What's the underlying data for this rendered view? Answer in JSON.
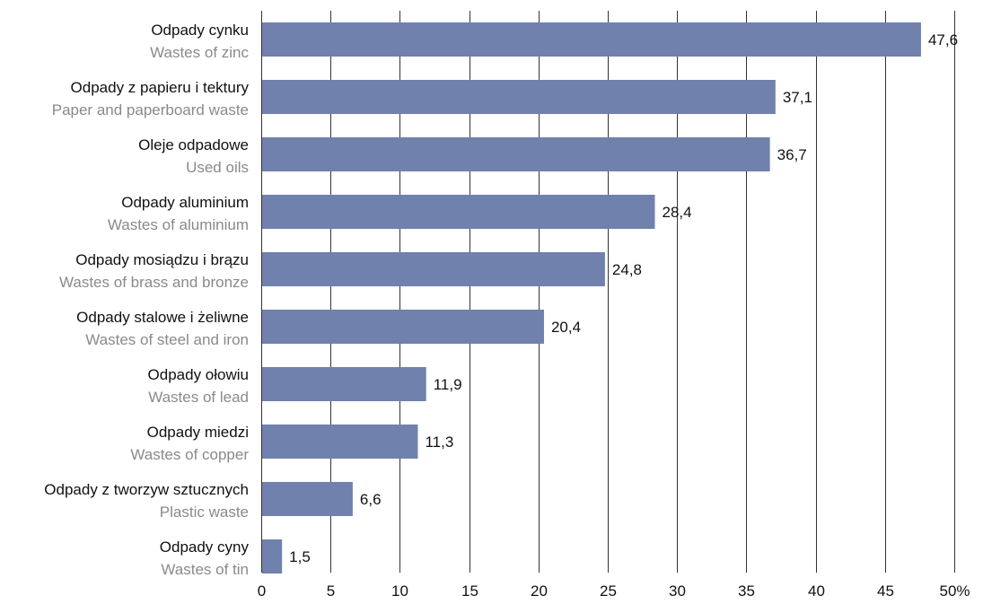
{
  "chart_data": {
    "type": "bar",
    "orientation": "horizontal",
    "categories": [
      {
        "label_pl": "Odpady cynku",
        "label_en": "Wastes of zinc"
      },
      {
        "label_pl": "Odpady z papieru i tektury",
        "label_en": "Paper and paperboard waste"
      },
      {
        "label_pl": "Oleje odpadowe",
        "label_en": "Used oils"
      },
      {
        "label_pl": "Odpady aluminium",
        "label_en": "Wastes of aluminium"
      },
      {
        "label_pl": "Odpady mosiądzu i brązu",
        "label_en": "Wastes of brass and bronze"
      },
      {
        "label_pl": "Odpady stalowe i żeliwne",
        "label_en": "Wastes of steel and iron"
      },
      {
        "label_pl": "Odpady ołowiu",
        "label_en": "Wastes of lead"
      },
      {
        "label_pl": "Odpady miedzi",
        "label_en": "Wastes of copper"
      },
      {
        "label_pl": "Odpady z tworzyw sztucznych",
        "label_en": "Plastic waste"
      },
      {
        "label_pl": "Odpady cyny",
        "label_en": "Wastes of tin"
      }
    ],
    "values": [
      47.6,
      37.1,
      36.7,
      28.4,
      24.8,
      20.4,
      11.9,
      11.3,
      6.6,
      1.5
    ],
    "value_labels": [
      "47,6",
      "37,1",
      "36,7",
      "28,4",
      "24,8",
      "20,4",
      "11,9",
      "11,3",
      "6,6",
      "1,5"
    ],
    "xlim": [
      0,
      50
    ],
    "x_ticks": [
      0,
      5,
      10,
      15,
      20,
      25,
      30,
      35,
      40,
      45,
      50
    ],
    "x_tick_labels": [
      "0",
      "5",
      "10",
      "15",
      "20",
      "25",
      "30",
      "35",
      "40",
      "45",
      "50%"
    ],
    "title": "",
    "xlabel": "",
    "ylabel": "",
    "grid": "vertical",
    "legend": "none",
    "bar_color": "#7181ad",
    "label_colors": {
      "primary": "#111111",
      "secondary": "#8a8a8a"
    }
  }
}
